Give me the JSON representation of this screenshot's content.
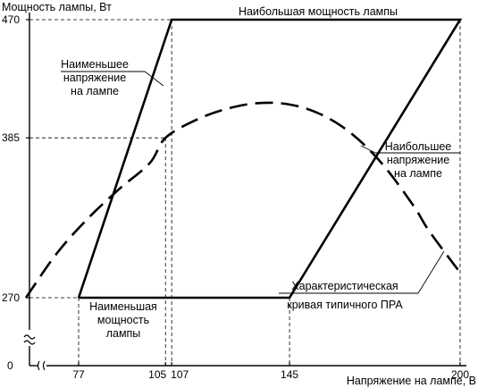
{
  "chart_data": {
    "type": "line",
    "title": "",
    "ylabel": "Мощность лампы, Вт",
    "xlabel": "Напряжение на лампе, В",
    "xlim": [
      60,
      200
    ],
    "ylim": [
      270,
      470
    ],
    "y_ticks": [
      {
        "value": 470,
        "label": "470"
      },
      {
        "value": 385,
        "label": "385"
      },
      {
        "value": 270,
        "label": "270"
      }
    ],
    "y_origin_label": "0",
    "axis_break": true,
    "x_ticks": [
      {
        "value": 77,
        "label": "77"
      },
      {
        "value": 105,
        "label": "105"
      },
      {
        "value": 107,
        "label": "107"
      },
      {
        "value": 145,
        "label": "145"
      },
      {
        "value": 200,
        "label": "200"
      }
    ],
    "guides": [
      {
        "x": 107,
        "y": 470
      },
      {
        "x": 105,
        "y": 385
      }
    ],
    "trapezoid": {
      "name": "",
      "points": [
        [
          77,
          270
        ],
        [
          145,
          270
        ],
        [
          200,
          470
        ],
        [
          107,
          470
        ],
        [
          77,
          270
        ]
      ]
    },
    "typical_curve": {
      "name": "Характеристическая кривая типичного ПРА",
      "style": "dashed",
      "points": [
        [
          60,
          270
        ],
        [
          70,
          302
        ],
        [
          80,
          327
        ],
        [
          90,
          348
        ],
        [
          100,
          367
        ],
        [
          105,
          385
        ],
        [
          115,
          398
        ],
        [
          125,
          406
        ],
        [
          135,
          410
        ],
        [
          145,
          409
        ],
        [
          155,
          402
        ],
        [
          165,
          388
        ],
        [
          175,
          366
        ],
        [
          185,
          336
        ],
        [
          190,
          318
        ],
        [
          200,
          288
        ]
      ]
    },
    "annotations": [
      {
        "id": "max-power",
        "lines": [
          "Наибольшая мощность лампы"
        ]
      },
      {
        "id": "min-voltage",
        "lines": [
          "Наименьшее",
          "напряжение",
          "на лампе"
        ]
      },
      {
        "id": "max-voltage",
        "lines": [
          "Наибольшее",
          "напряжение",
          "на лампе"
        ]
      },
      {
        "id": "min-power",
        "lines": [
          "Наименьшая",
          "мощность",
          "лампы"
        ]
      },
      {
        "id": "ballast-curve",
        "lines": [
          "Характеристическая",
          "кривая типичного ПРА"
        ]
      }
    ]
  }
}
